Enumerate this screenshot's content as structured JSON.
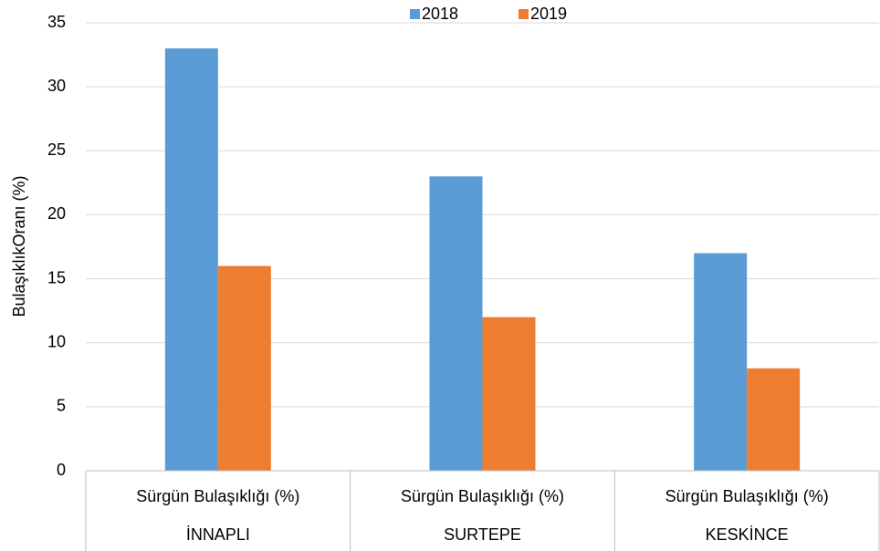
{
  "chart_data": {
    "type": "bar",
    "ylabel": "BulaşıklıkOranı (%)",
    "categories": [
      "İNNAPLI",
      "SURTEPE",
      "KESKİNCE"
    ],
    "subcategories": [
      "Sürgün Bulaşıklığı (%)",
      "Sürgün Bulaşıklığı (%)",
      "Sürgün Bulaşıklığı (%)"
    ],
    "series": [
      {
        "name": "2018",
        "color": "#5b9bd5",
        "values": [
          33,
          23,
          17
        ]
      },
      {
        "name": "2019",
        "color": "#ed7d31",
        "values": [
          16,
          12,
          8
        ]
      }
    ],
    "ylim": [
      0,
      35
    ],
    "yticks": [
      0,
      5,
      10,
      15,
      20,
      25,
      30,
      35
    ],
    "grid": true,
    "legend": "top"
  }
}
